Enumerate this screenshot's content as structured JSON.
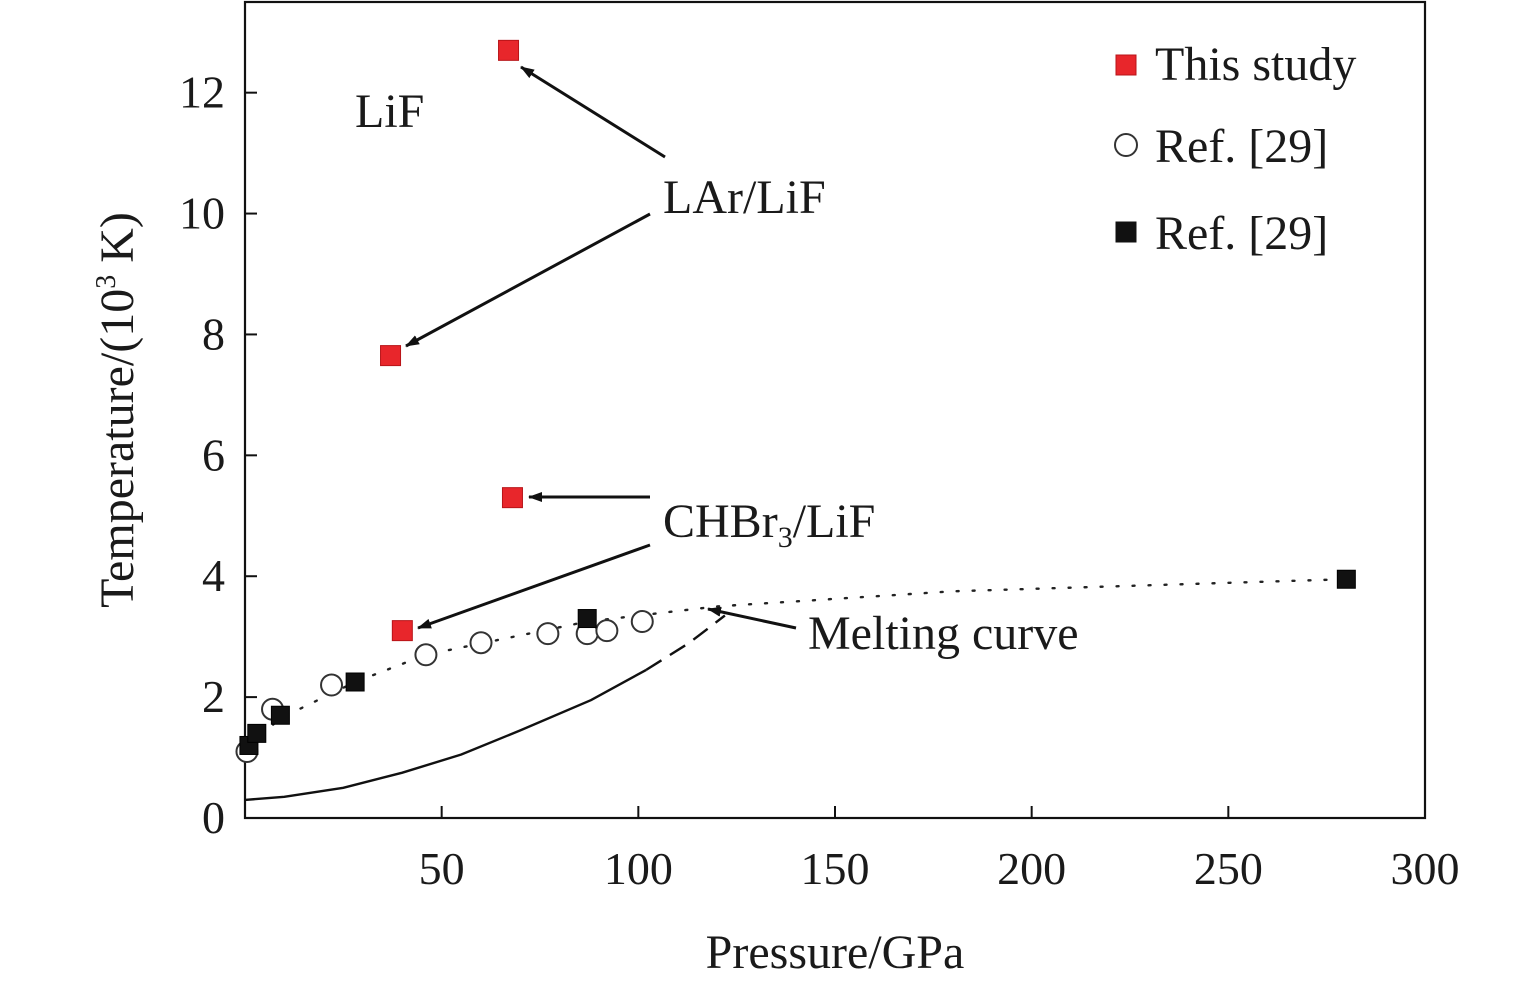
{
  "chart_data": {
    "type": "scatter",
    "title": "",
    "xlabel": "Pressure/GPa",
    "ylabel": {
      "prefix": "Temperature/(10",
      "sup": "3",
      "suffix": " K)"
    },
    "xlim": [
      0,
      300
    ],
    "ylim": [
      0,
      13.5
    ],
    "xticks": [
      50,
      100,
      150,
      200,
      250,
      300
    ],
    "yticks": [
      0,
      2,
      4,
      6,
      8,
      10,
      12
    ],
    "grid": false,
    "legend_position": "top-right",
    "colors": {
      "this_study": "#e8262b",
      "ref_filled": "#111111",
      "ref_open": "#ffffff",
      "line": "#111111"
    },
    "series": [
      {
        "name": "This study",
        "marker": "square-red",
        "points": [
          [
            67,
            12.7
          ],
          [
            37,
            7.65
          ],
          [
            68,
            5.3
          ],
          [
            40,
            3.1
          ]
        ]
      },
      {
        "name": "Ref. [29]",
        "marker": "circle-open",
        "points": [
          [
            0.5,
            1.1
          ],
          [
            7,
            1.8
          ],
          [
            22,
            2.2
          ],
          [
            46,
            2.7
          ],
          [
            60,
            2.9
          ],
          [
            77,
            3.05
          ],
          [
            87,
            3.05
          ],
          [
            92,
            3.1
          ],
          [
            101,
            3.25
          ]
        ]
      },
      {
        "name": "Ref. [29]",
        "marker": "square-black",
        "points": [
          [
            1,
            1.2
          ],
          [
            3,
            1.4
          ],
          [
            9,
            1.7
          ],
          [
            28,
            2.25
          ],
          [
            87,
            3.3
          ],
          [
            280,
            3.95
          ]
        ]
      }
    ],
    "fit_curve": [
      [
        1,
        1.2
      ],
      [
        9,
        1.65
      ],
      [
        28,
        2.25
      ],
      [
        46,
        2.7
      ],
      [
        87,
        3.25
      ],
      [
        120,
        3.5
      ],
      [
        180,
        3.75
      ],
      [
        280,
        3.95
      ]
    ],
    "melting_curve": [
      [
        0,
        0.3
      ],
      [
        10,
        0.35
      ],
      [
        25,
        0.5
      ],
      [
        40,
        0.75
      ],
      [
        55,
        1.05
      ],
      [
        70,
        1.45
      ],
      [
        88,
        1.95
      ],
      [
        102,
        2.45
      ],
      [
        113,
        2.9
      ],
      [
        122,
        3.35
      ]
    ],
    "annotations": [
      {
        "id": "lif",
        "text": "LiF"
      },
      {
        "id": "lar",
        "text": "LAr/LiF"
      },
      {
        "id": "chbr",
        "text_parts": [
          "CHBr",
          "3",
          "/LiF"
        ]
      },
      {
        "id": "melting",
        "text": "Melting curve"
      }
    ]
  }
}
